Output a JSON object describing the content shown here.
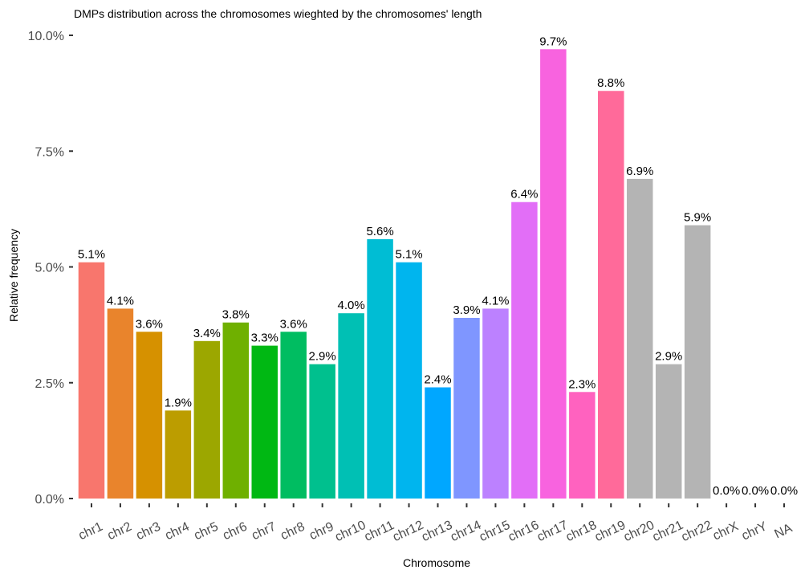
{
  "chart_data": {
    "type": "bar",
    "title": "DMPs distribution across the chromosomes wieghted by the chromosomes' length",
    "xlabel": "Chromosome",
    "ylabel": "Relative frequency",
    "ylim": [
      0,
      10
    ],
    "grid": false,
    "legend": "none",
    "yticks": [
      0,
      2.5,
      5,
      7.5,
      10
    ],
    "ytick_labels": [
      "0.0%",
      "2.5%",
      "5.0%",
      "7.5%",
      "10.0%"
    ],
    "categories": [
      "chr1",
      "chr2",
      "chr3",
      "chr4",
      "chr5",
      "chr6",
      "chr7",
      "chr8",
      "chr9",
      "chr10",
      "chr11",
      "chr12",
      "chr13",
      "chr14",
      "chr15",
      "chr16",
      "chr17",
      "chr18",
      "chr19",
      "chr20",
      "chr21",
      "chr22",
      "chrX",
      "chrY",
      "NA"
    ],
    "values": [
      5.1,
      4.1,
      3.6,
      1.9,
      3.4,
      3.8,
      3.3,
      3.6,
      2.9,
      4.0,
      5.6,
      5.1,
      2.4,
      3.9,
      4.1,
      6.4,
      9.7,
      2.3,
      8.8,
      6.9,
      2.9,
      5.9,
      0.0,
      0.0,
      0.0
    ],
    "data_labels": [
      "5.1%",
      "4.1%",
      "3.6%",
      "1.9%",
      "3.4%",
      "3.8%",
      "3.3%",
      "3.6%",
      "2.9%",
      "4.0%",
      "5.6%",
      "5.1%",
      "2.4%",
      "3.9%",
      "4.1%",
      "6.4%",
      "9.7%",
      "2.3%",
      "8.8%",
      "6.9%",
      "2.9%",
      "5.9%",
      "0.0%",
      "0.0%",
      "0.0%"
    ],
    "colors": [
      "#F8766D",
      "#E9842C",
      "#D69100",
      "#BC9D00",
      "#9CA700",
      "#6FB000",
      "#00B813",
      "#00BD61",
      "#00C08E",
      "#00C0B4",
      "#00BDD4",
      "#00B5EE",
      "#00A7FF",
      "#7F96FF",
      "#BC81FF",
      "#E26EF7",
      "#F863DF",
      "#FF62BF",
      "#FF6A9A",
      "#B4B4B4",
      "#B4B4B4",
      "#B4B4B4",
      "#B4B4B4",
      "#B4B4B4",
      "#B4B4B4"
    ]
  }
}
